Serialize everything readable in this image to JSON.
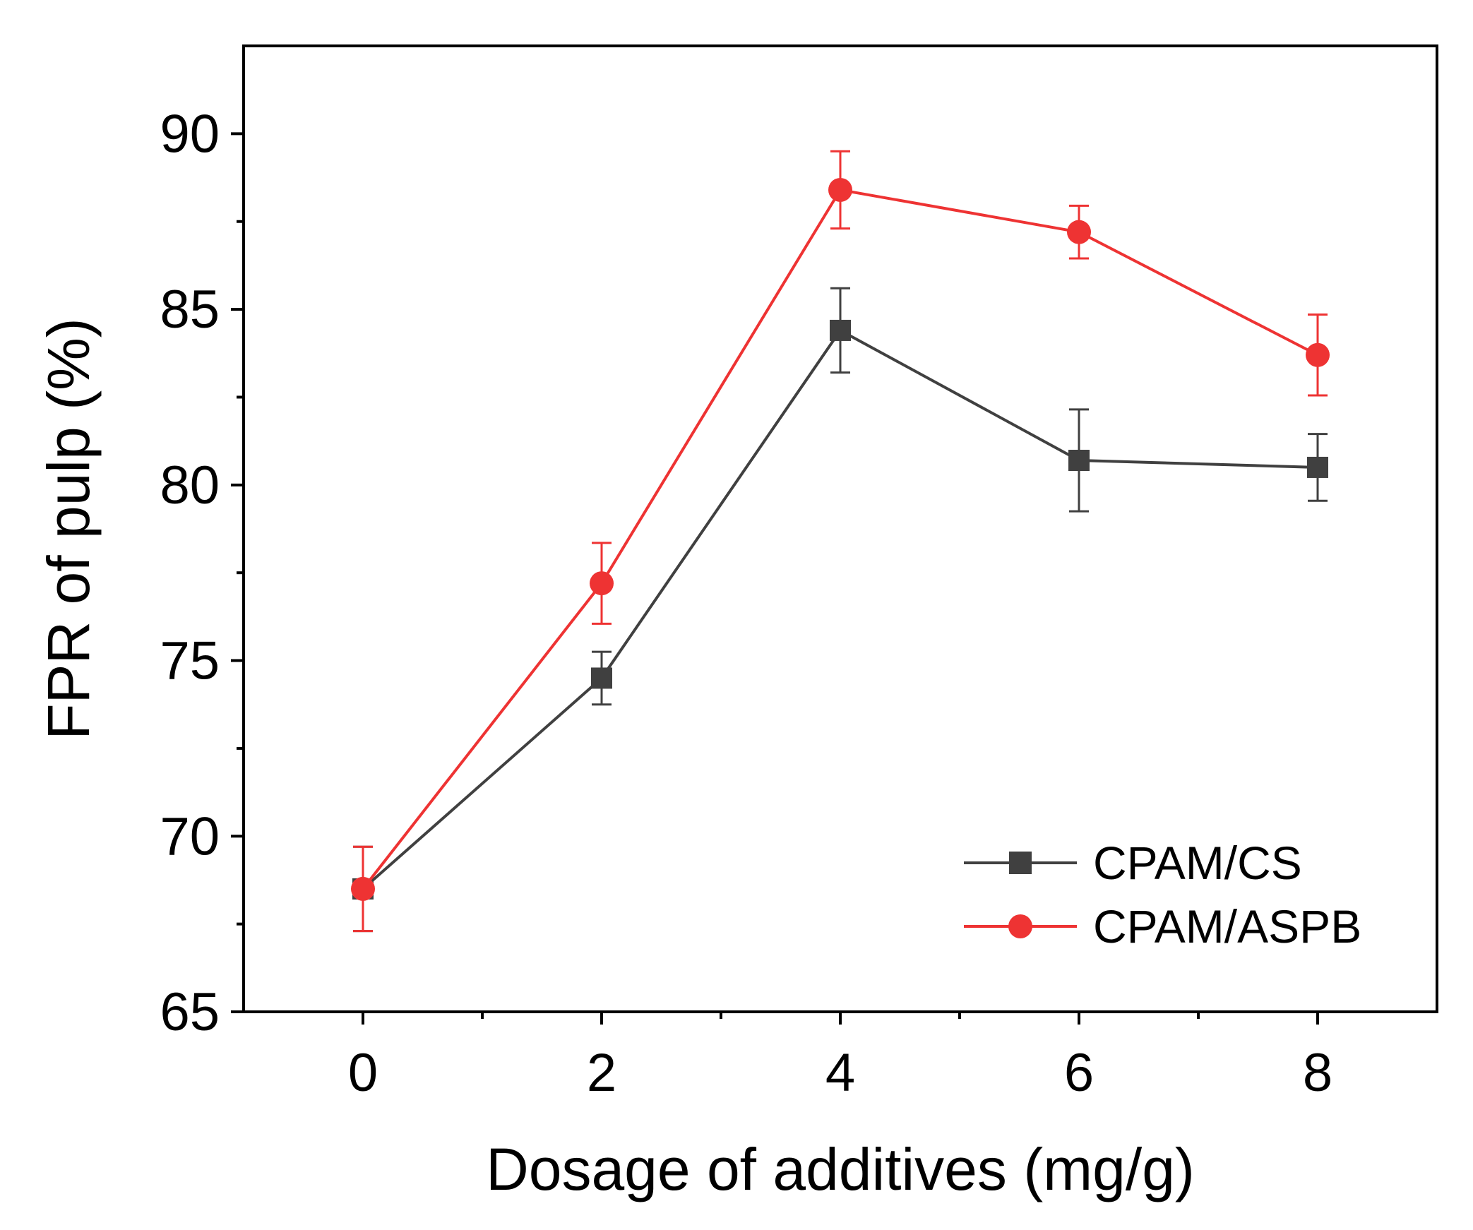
{
  "chart_data": {
    "type": "line",
    "title": "",
    "xlabel": "Dosage of additives (mg/g)",
    "ylabel": "FPR of pulp (%)",
    "xlim": [
      -1,
      9
    ],
    "ylim": [
      65,
      92.5
    ],
    "x_ticks": [
      0,
      2,
      4,
      6,
      8
    ],
    "y_ticks": [
      65,
      70,
      75,
      80,
      85,
      90
    ],
    "x": [
      0,
      2,
      4,
      6,
      8
    ],
    "grid": false,
    "legend_position": "bottom-right",
    "series": [
      {
        "name": "CPAM/CS",
        "color": "#404040",
        "marker": "square",
        "values": [
          68.5,
          74.5,
          84.4,
          80.7,
          80.5
        ],
        "errors": [
          1.2,
          0.75,
          1.2,
          1.45,
          0.95
        ]
      },
      {
        "name": "CPAM/ASPB",
        "color": "#ee3333",
        "marker": "circle",
        "values": [
          68.5,
          77.2,
          88.4,
          87.2,
          83.7
        ],
        "errors": [
          1.2,
          1.15,
          1.1,
          0.75,
          1.15
        ]
      }
    ]
  }
}
